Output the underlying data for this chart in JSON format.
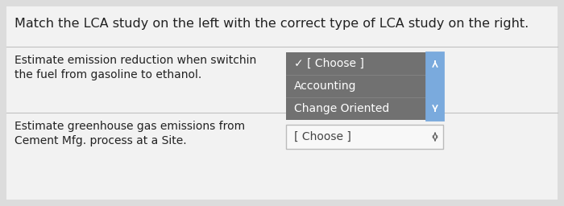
{
  "title": "Match the LCA study on the left with the correct type of LCA study on the right.",
  "bg_color": "#dcdcdc",
  "panel_bg": "#f2f2f2",
  "text_color": "#222222",
  "divider_color": "#c0c0c0",
  "row1_line1": "Estimate emission reduction when switchin",
  "row1_line2": "the fuel from gasoline to ethanol.",
  "row2_line1": "Estimate greenhouse gas emissions from",
  "row2_line2": "Cement Mfg. process at a Site.",
  "dd1_options": [
    "✓ [ Choose ]",
    "Accounting",
    "Change Oriented"
  ],
  "dd1_bg": "#717171",
  "dd1_text": "#ffffff",
  "dd1_border": "#7aaadd",
  "dd1_scroll_bg": "#7aaadd",
  "dd2_label": "[ Choose ]",
  "dd2_bg": "#f8f8f8",
  "dd2_border": "#bbbbbb",
  "dd2_text": "#444444",
  "title_fontsize": 11.5,
  "body_fontsize": 10,
  "dd_fontsize": 10
}
